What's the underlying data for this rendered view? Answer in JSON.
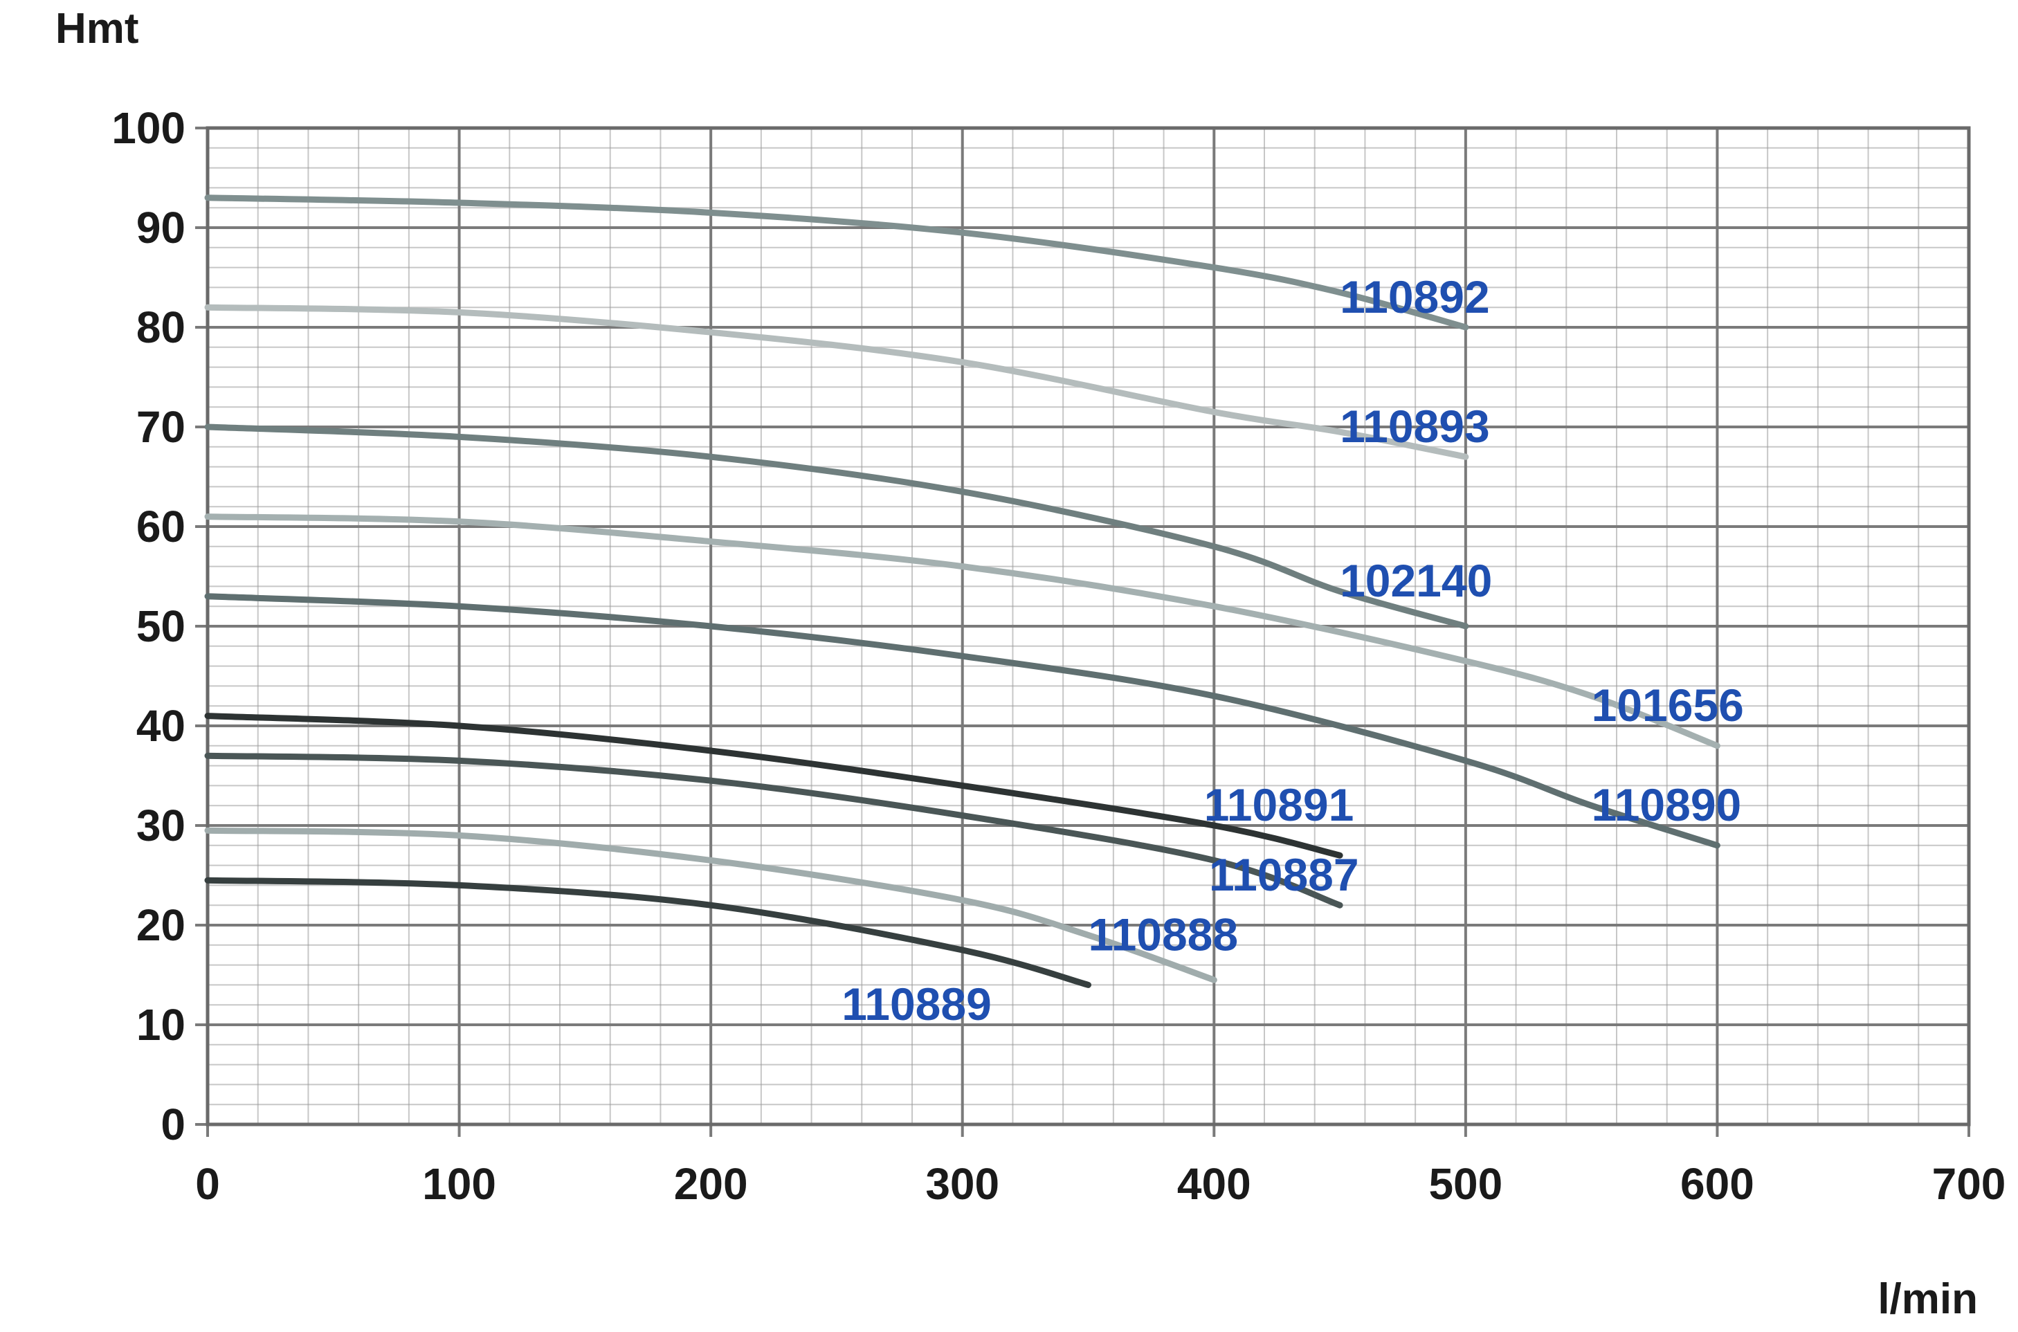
{
  "chart_data": {
    "type": "line",
    "title": "",
    "ylabel": "Hmt",
    "xlabel": "l/min",
    "xlim": [
      0,
      700
    ],
    "ylim": [
      0,
      100
    ],
    "x_ticks": [
      0,
      100,
      200,
      300,
      400,
      500,
      600,
      700
    ],
    "y_ticks": [
      0,
      10,
      20,
      30,
      40,
      50,
      60,
      70,
      80,
      90,
      100
    ],
    "x_ticks_text": [
      "0",
      "100",
      "200",
      "300",
      "400",
      "500",
      "600",
      "700"
    ],
    "y_ticks_text": [
      "0",
      "10",
      "20",
      "30",
      "40",
      "50",
      "60",
      "70",
      "80",
      "90",
      "100"
    ],
    "grid": true,
    "label_color": "#1f4fb0",
    "grid_color": "#9a9a9a",
    "series": [
      {
        "name": "110892",
        "color": "#7f8f8f",
        "x": [
          0,
          100,
          200,
          300,
          400,
          450,
          500
        ],
        "y": [
          93,
          92.5,
          91.5,
          89.5,
          86,
          83.5,
          80
        ],
        "label_at": [
          450,
          83
        ]
      },
      {
        "name": "110893",
        "color": "#b4bcbc",
        "x": [
          0,
          100,
          200,
          300,
          400,
          450,
          500
        ],
        "y": [
          82,
          81.5,
          79.5,
          76.5,
          71.5,
          69.5,
          67
        ],
        "label_at": [
          450,
          70
        ]
      },
      {
        "name": "102140",
        "color": "#6f7f7f",
        "x": [
          0,
          100,
          200,
          300,
          400,
          450,
          500
        ],
        "y": [
          70,
          69,
          67,
          63.5,
          58,
          53.5,
          50
        ],
        "label_at": [
          450,
          54.5
        ]
      },
      {
        "name": "101656",
        "color": "#a4b0b0",
        "x": [
          0,
          100,
          200,
          300,
          400,
          500,
          550,
          600
        ],
        "y": [
          61,
          60.5,
          58.5,
          56,
          52,
          46.5,
          43,
          38
        ],
        "label_at": [
          550,
          42
        ]
      },
      {
        "name": "110890",
        "color": "#5f6f70",
        "x": [
          0,
          100,
          200,
          300,
          400,
          500,
          550,
          600
        ],
        "y": [
          53,
          52,
          50,
          47,
          43,
          36.5,
          32,
          28
        ],
        "label_at": [
          550,
          32
        ]
      },
      {
        "name": "110891",
        "color": "#2d3333",
        "x": [
          0,
          100,
          200,
          300,
          400,
          450
        ],
        "y": [
          41,
          40,
          37.5,
          34,
          30,
          27
        ],
        "label_at": [
          396,
          32
        ]
      },
      {
        "name": "110887",
        "color": "#4a5656",
        "x": [
          0,
          100,
          200,
          300,
          400,
          450
        ],
        "y": [
          37,
          36.5,
          34.5,
          31,
          26.5,
          22
        ],
        "label_at": [
          398,
          25
        ]
      },
      {
        "name": "110888",
        "color": "#a0acac",
        "x": [
          0,
          100,
          200,
          300,
          350,
          400
        ],
        "y": [
          29.5,
          29,
          26.5,
          22.5,
          19,
          14.5
        ],
        "label_at": [
          350,
          19
        ]
      },
      {
        "name": "110889",
        "color": "#363f3f",
        "x": [
          0,
          100,
          200,
          300,
          350
        ],
        "y": [
          24.5,
          24,
          22,
          17.5,
          14
        ],
        "label_at": [
          252,
          12
        ]
      }
    ]
  }
}
